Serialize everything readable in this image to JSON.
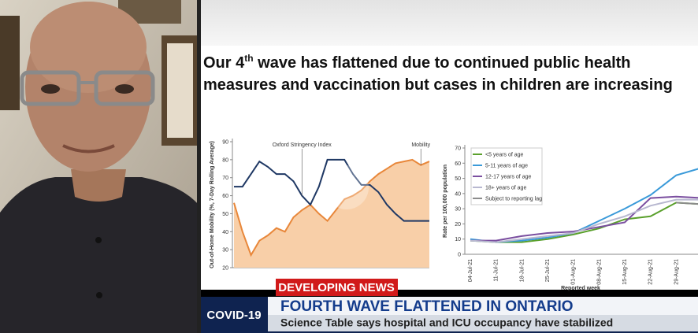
{
  "slide": {
    "title": [
      "Our 4",
      "th",
      " wave has flattened due to continued public health",
      "measures and vaccination but cases in children are increasing"
    ]
  },
  "broadcast": {
    "tag": "DEVELOPING NEWS",
    "topic": "COVID-19",
    "headline": "FOURTH WAVE FLATTENED IN ONTARIO",
    "subline": "Science Table says hospital and ICU occupancy have stabilized"
  },
  "chart_data": [
    {
      "type": "line",
      "y_label": "Out-of-Home Mobility (%, 7-Day Rolling Average)",
      "categories": [
        null,
        null,
        null,
        null,
        null,
        null,
        null,
        null,
        null,
        null,
        null,
        null,
        null,
        null,
        null,
        null,
        null,
        null,
        null,
        null,
        null,
        null,
        null,
        null
      ],
      "ylim": [
        20,
        90
      ],
      "yticks": [
        20,
        30,
        40,
        50,
        60,
        70,
        80,
        90
      ],
      "series": [
        {
          "name": "Mobility",
          "color": "#e8873a",
          "fill": "#f8cfa8",
          "values": [
            56,
            40,
            27,
            35,
            38,
            42,
            40,
            48,
            52,
            55,
            50,
            46,
            52,
            58,
            60,
            63,
            68,
            72,
            75,
            78,
            79,
            80,
            77,
            79
          ]
        },
        {
          "name": "Oxford Stringency Index",
          "color": "#1f3864",
          "fill": null,
          "values": [
            65,
            65,
            72,
            79,
            76,
            72,
            72,
            68,
            60,
            55,
            65,
            80,
            80,
            80,
            72,
            66,
            66,
            62,
            55,
            50,
            46,
            46,
            46,
            46
          ]
        }
      ]
    },
    {
      "type": "line",
      "x_label": "Reported week",
      "y_label": "Rate per 100,000 population",
      "categories": [
        "04-Jul-21",
        "11-Jul-21",
        "18-Jul-21",
        "25-Jul-21",
        "01-Aug-21",
        "08-Aug-21",
        "15-Aug-21",
        "22-Aug-21",
        "29-Aug-21",
        null
      ],
      "ylim": [
        0,
        70
      ],
      "yticks": [
        0,
        10,
        20,
        30,
        40,
        50,
        60,
        70
      ],
      "legend": "upper left",
      "series": [
        {
          "name": "<5 years of age",
          "color": "#5aa02c",
          "values": [
            9,
            8,
            8,
            10,
            13,
            17,
            23,
            25,
            34,
            33
          ]
        },
        {
          "name": "5-11 years of age",
          "color": "#3a9ad9",
          "values": [
            10,
            8,
            9,
            11,
            14,
            22,
            30,
            39,
            52,
            57
          ]
        },
        {
          "name": "12-17 years of age",
          "color": "#7b4fa0",
          "values": [
            9,
            9,
            12,
            14,
            15,
            18,
            21,
            37,
            38,
            37
          ]
        },
        {
          "name": "18+ years of age",
          "color": "#b8b8d0",
          "values": [
            9,
            8,
            10,
            12,
            14,
            20,
            25,
            32,
            36,
            36
          ]
        },
        {
          "name": "Subject to reporting lag",
          "color": "#8c8c8c",
          "values": [
            null,
            null,
            null,
            null,
            null,
            null,
            null,
            null,
            34,
            33
          ]
        }
      ]
    }
  ]
}
